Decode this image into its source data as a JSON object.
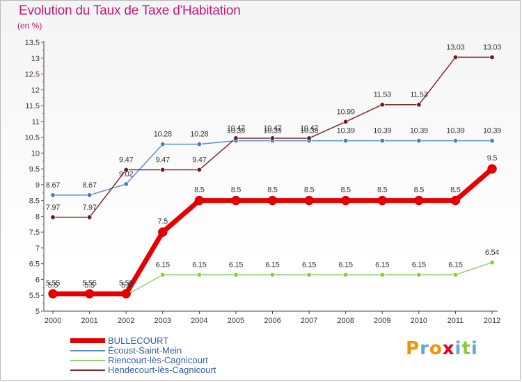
{
  "header": {
    "title": "Evolution du Taux de Taxe d'Habitation",
    "unit": "(en %)"
  },
  "logo": {
    "text": "Proxiti",
    "letter_colors": [
      "#f29400",
      "#5aa9df",
      "#f29400",
      "#e0001a",
      "#5aa9df",
      "#8cc63f",
      "#5aa9df"
    ]
  },
  "chart_data": {
    "type": "line",
    "x": [
      "2000",
      "2001",
      "2002",
      "2003",
      "2004",
      "2005",
      "2006",
      "2007",
      "2008",
      "2009",
      "2010",
      "2011",
      "2012"
    ],
    "ylim": [
      5,
      13.5
    ],
    "yticks": [
      "5",
      "5.5",
      "6",
      "6.5",
      "7",
      "7.5",
      "8",
      "8.5",
      "9",
      "9.5",
      "10",
      "10.5",
      "11",
      "11.5",
      "12",
      "12.5",
      "13",
      "13.5"
    ],
    "grid": false,
    "legend_position": "bottom-left",
    "series": [
      {
        "name": "BULLECOURT",
        "color": "#e80000",
        "values": [
          5.55,
          5.55,
          5.55,
          7.5,
          8.5,
          8.5,
          8.5,
          8.5,
          8.5,
          8.5,
          8.5,
          8.5,
          9.5
        ],
        "labels": [
          "5.55",
          "5.55",
          "5.55",
          "7.5",
          "8.5",
          "8.5",
          "8.5",
          "8.5",
          "8.5",
          "8.5",
          "8.5",
          "8.5",
          "9.5"
        ]
      },
      {
        "name": "Écoust-Saint-Mein",
        "color": "#5b8fc9",
        "values": [
          8.67,
          8.67,
          9.02,
          10.28,
          10.28,
          10.39,
          10.39,
          10.39,
          10.39,
          10.39,
          10.39,
          10.39,
          10.39
        ],
        "labels": [
          "8.67",
          "8.67",
          "9.02",
          "10.28",
          "10.28",
          "10.39",
          "10.39",
          "10.39",
          "10.39",
          "10.39",
          "10.39",
          "10.39",
          "10.39"
        ]
      },
      {
        "name": "Riencourt-lès-Cagnicourt",
        "color": "#8fd36b",
        "values": [
          5.5,
          5.5,
          5.5,
          6.15,
          6.15,
          6.15,
          6.15,
          6.15,
          6.15,
          6.15,
          6.15,
          6.15,
          6.54
        ],
        "labels": [
          "5.5",
          "5.5",
          "5.5",
          "6.15",
          "6.15",
          "6.15",
          "6.15",
          "6.15",
          "6.15",
          "6.15",
          "6.15",
          "6.15",
          "6.54"
        ]
      },
      {
        "name": "Hendecourt-lès-Cagnicourt",
        "color": "#7a2a2a",
        "values": [
          7.97,
          7.97,
          9.47,
          9.47,
          9.47,
          10.47,
          10.47,
          10.47,
          10.99,
          11.53,
          11.53,
          13.03,
          13.03
        ],
        "labels": [
          "7.97",
          "7.97",
          "9.47",
          "9.47",
          "9.47",
          "10.47",
          "10.47",
          "10.47",
          "10.99",
          "11.53",
          "11.53",
          "13.03",
          "13.03"
        ]
      }
    ]
  }
}
